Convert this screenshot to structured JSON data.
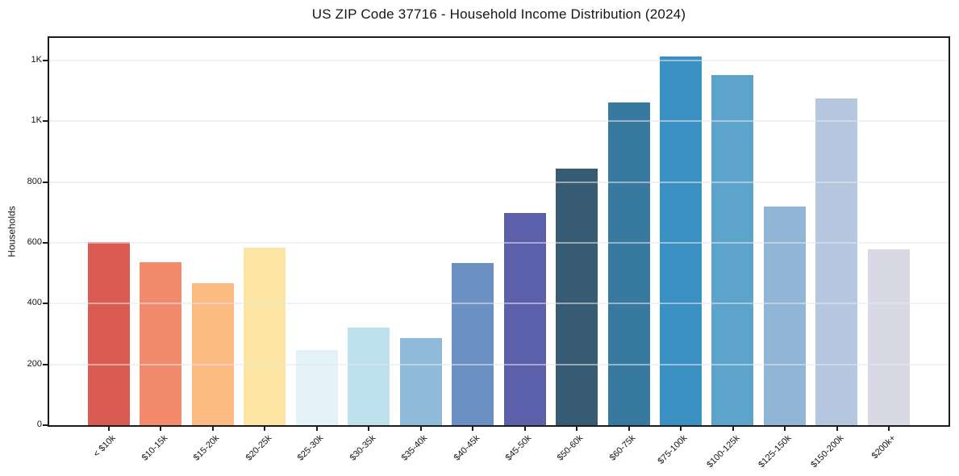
{
  "page": {
    "background": "#ffffff",
    "text_color": "#151515"
  },
  "chart_data": {
    "type": "bar",
    "title": "US ZIP Code 37716 - Household Income Distribution (2024)",
    "xlabel": "",
    "ylabel": "Households",
    "categories": [
      "< $10k",
      "$10-15k",
      "$15-20k",
      "$20-25k",
      "$25-30k",
      "$30-35k",
      "$35-40k",
      "$40-45k",
      "$45-50k",
      "$50-60k",
      "$60-75k",
      "$75-100k",
      "$100-125k",
      "$125-150k",
      "$150-200k",
      "$200k+"
    ],
    "values": [
      602,
      535,
      466,
      585,
      246,
      322,
      288,
      533,
      697,
      845,
      1063,
      1213,
      1152,
      719,
      1076,
      578
    ],
    "bar_colors": [
      "#d95b52",
      "#f38a6b",
      "#fcbb80",
      "#fce5a3",
      "#e4f2f8",
      "#bee1ee",
      "#8fbada",
      "#6a90c4",
      "#5c60ab",
      "#375b72",
      "#3879a0",
      "#3a90c3",
      "#5ca4ca",
      "#90b5d5",
      "#b6c8df",
      "#d8d9e5"
    ],
    "y_ticks": [
      {
        "value": 0,
        "label": "0"
      },
      {
        "value": 200,
        "label": "200"
      },
      {
        "value": 400,
        "label": "400"
      },
      {
        "value": 600,
        "label": "600"
      },
      {
        "value": 800,
        "label": "800"
      },
      {
        "value": 1000,
        "label": "1K"
      },
      {
        "value": 1200,
        "label": "1K"
      }
    ],
    "ylim": [
      0,
      1274
    ],
    "grid": "horizontal",
    "legend": "none"
  }
}
